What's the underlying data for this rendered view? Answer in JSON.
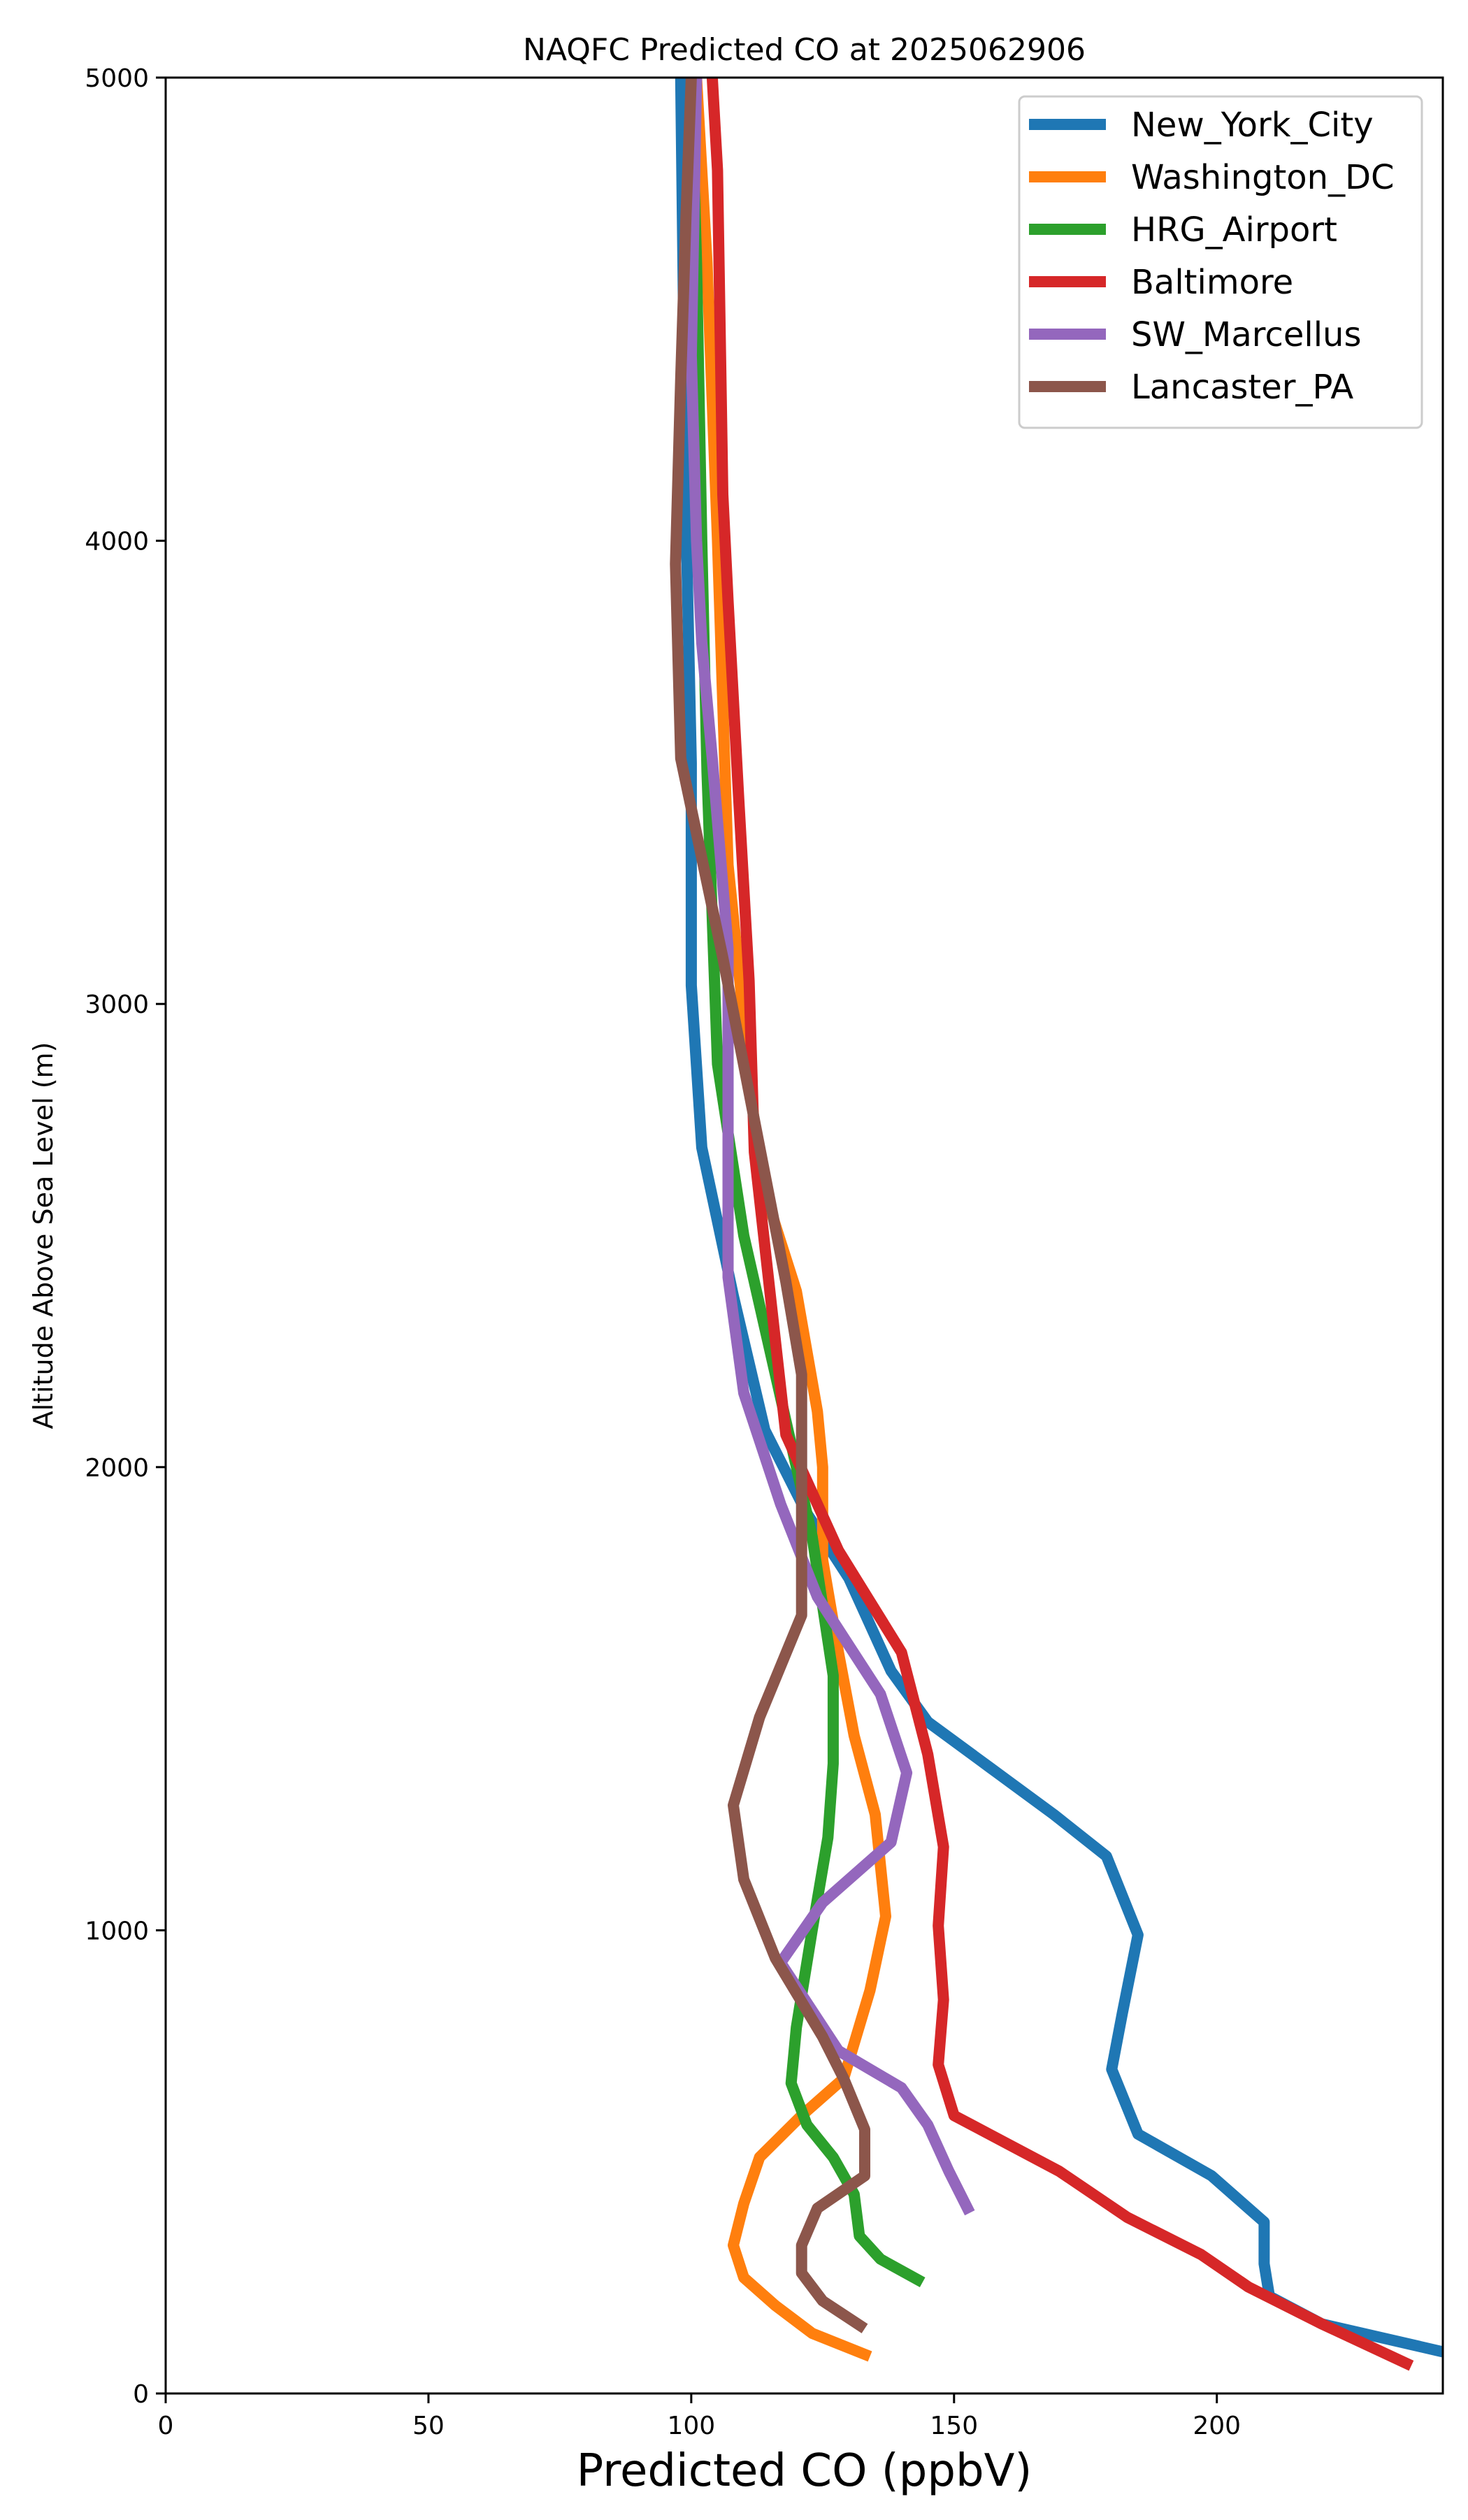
{
  "chart_data": {
    "type": "line",
    "title": "NAQFC Predicted CO at 2025062906",
    "xlabel": "Predicted CO (ppbV)",
    "ylabel": "Altitude Above Sea Level (m)",
    "xlim": [
      0,
      243
    ],
    "ylim": [
      0,
      5000
    ],
    "xticks": [
      0,
      50,
      100,
      150,
      200
    ],
    "yticks": [
      0,
      1000,
      2000,
      3000,
      4000,
      5000
    ],
    "grid": false,
    "legend_position": "top-right",
    "series": [
      {
        "name": "New_York_City",
        "color": "#1f77b4",
        "x": [
          243,
          220,
          210,
          209,
          209,
          199,
          185,
          180,
          182,
          185,
          179,
          169,
          157,
          145,
          138,
          130,
          122,
          114,
          108,
          102,
          100,
          100,
          99,
          98
        ],
        "y": [
          90,
          150,
          210,
          280,
          370,
          470,
          560,
          700,
          820,
          990,
          1160,
          1250,
          1350,
          1450,
          1560,
          1760,
          1900,
          2080,
          2370,
          2690,
          3040,
          3520,
          4050,
          5000
        ]
      },
      {
        "name": "Washington_DC",
        "color": "#ff7f0e",
        "x": [
          134,
          123,
          116,
          110,
          108,
          110,
          113,
          121,
          129,
          134,
          137,
          135,
          131,
          128,
          125,
          125,
          124,
          120,
          113,
          107,
          105,
          103,
          101
        ],
        "y": [
          80,
          130,
          190,
          250,
          320,
          410,
          510,
          600,
          680,
          870,
          1030,
          1250,
          1420,
          1600,
          1800,
          2000,
          2120,
          2380,
          2630,
          3300,
          4000,
          4600,
          5000
        ]
      },
      {
        "name": "HRG_Airport",
        "color": "#2ca02c",
        "x": [
          144,
          136,
          132,
          131,
          127,
          122,
          119,
          120,
          123,
          126,
          127,
          127,
          123,
          117,
          110,
          105,
          103,
          102,
          101,
          100
        ],
        "y": [
          240,
          290,
          340,
          430,
          510,
          580,
          670,
          790,
          1000,
          1200,
          1360,
          1550,
          1850,
          2150,
          2500,
          2870,
          3500,
          4000,
          4600,
          5000
        ]
      },
      {
        "name": "Baltimore",
        "color": "#d62728",
        "x": [
          237,
          220,
          206,
          197,
          183,
          170,
          150,
          147,
          148,
          147,
          148,
          145,
          140,
          128,
          118,
          112,
          111,
          109,
          107,
          106,
          105,
          104
        ],
        "y": [
          60,
          150,
          230,
          300,
          380,
          480,
          600,
          710,
          850,
          1010,
          1180,
          1380,
          1600,
          1820,
          2070,
          2680,
          3050,
          3450,
          3870,
          4100,
          4800,
          5000
        ]
      },
      {
        "name": "SW_Marcellus",
        "color": "#9467bd",
        "x": [
          153,
          149,
          145,
          140,
          128,
          117,
          125,
          138,
          141,
          136,
          124,
          117,
          110,
          107,
          107,
          104,
          102,
          101,
          100,
          101
        ],
        "y": [
          390,
          480,
          580,
          660,
          740,
          930,
          1060,
          1190,
          1340,
          1510,
          1720,
          1920,
          2160,
          2410,
          3120,
          3530,
          3780,
          4000,
          4400,
          5000
        ]
      },
      {
        "name": "Lancaster_PA",
        "color": "#8c564b",
        "x": [
          133,
          125,
          121,
          121,
          124,
          133,
          133,
          129,
          125,
          116,
          110,
          108,
          113,
          121,
          121,
          121,
          118,
          112,
          106,
          98,
          97,
          98,
          99,
          100
        ],
        "y": [
          140,
          200,
          260,
          320,
          400,
          470,
          570,
          680,
          770,
          940,
          1110,
          1270,
          1460,
          1680,
          1900,
          2200,
          2400,
          2750,
          3100,
          3530,
          3950,
          4350,
          4700,
          5000
        ]
      }
    ]
  }
}
